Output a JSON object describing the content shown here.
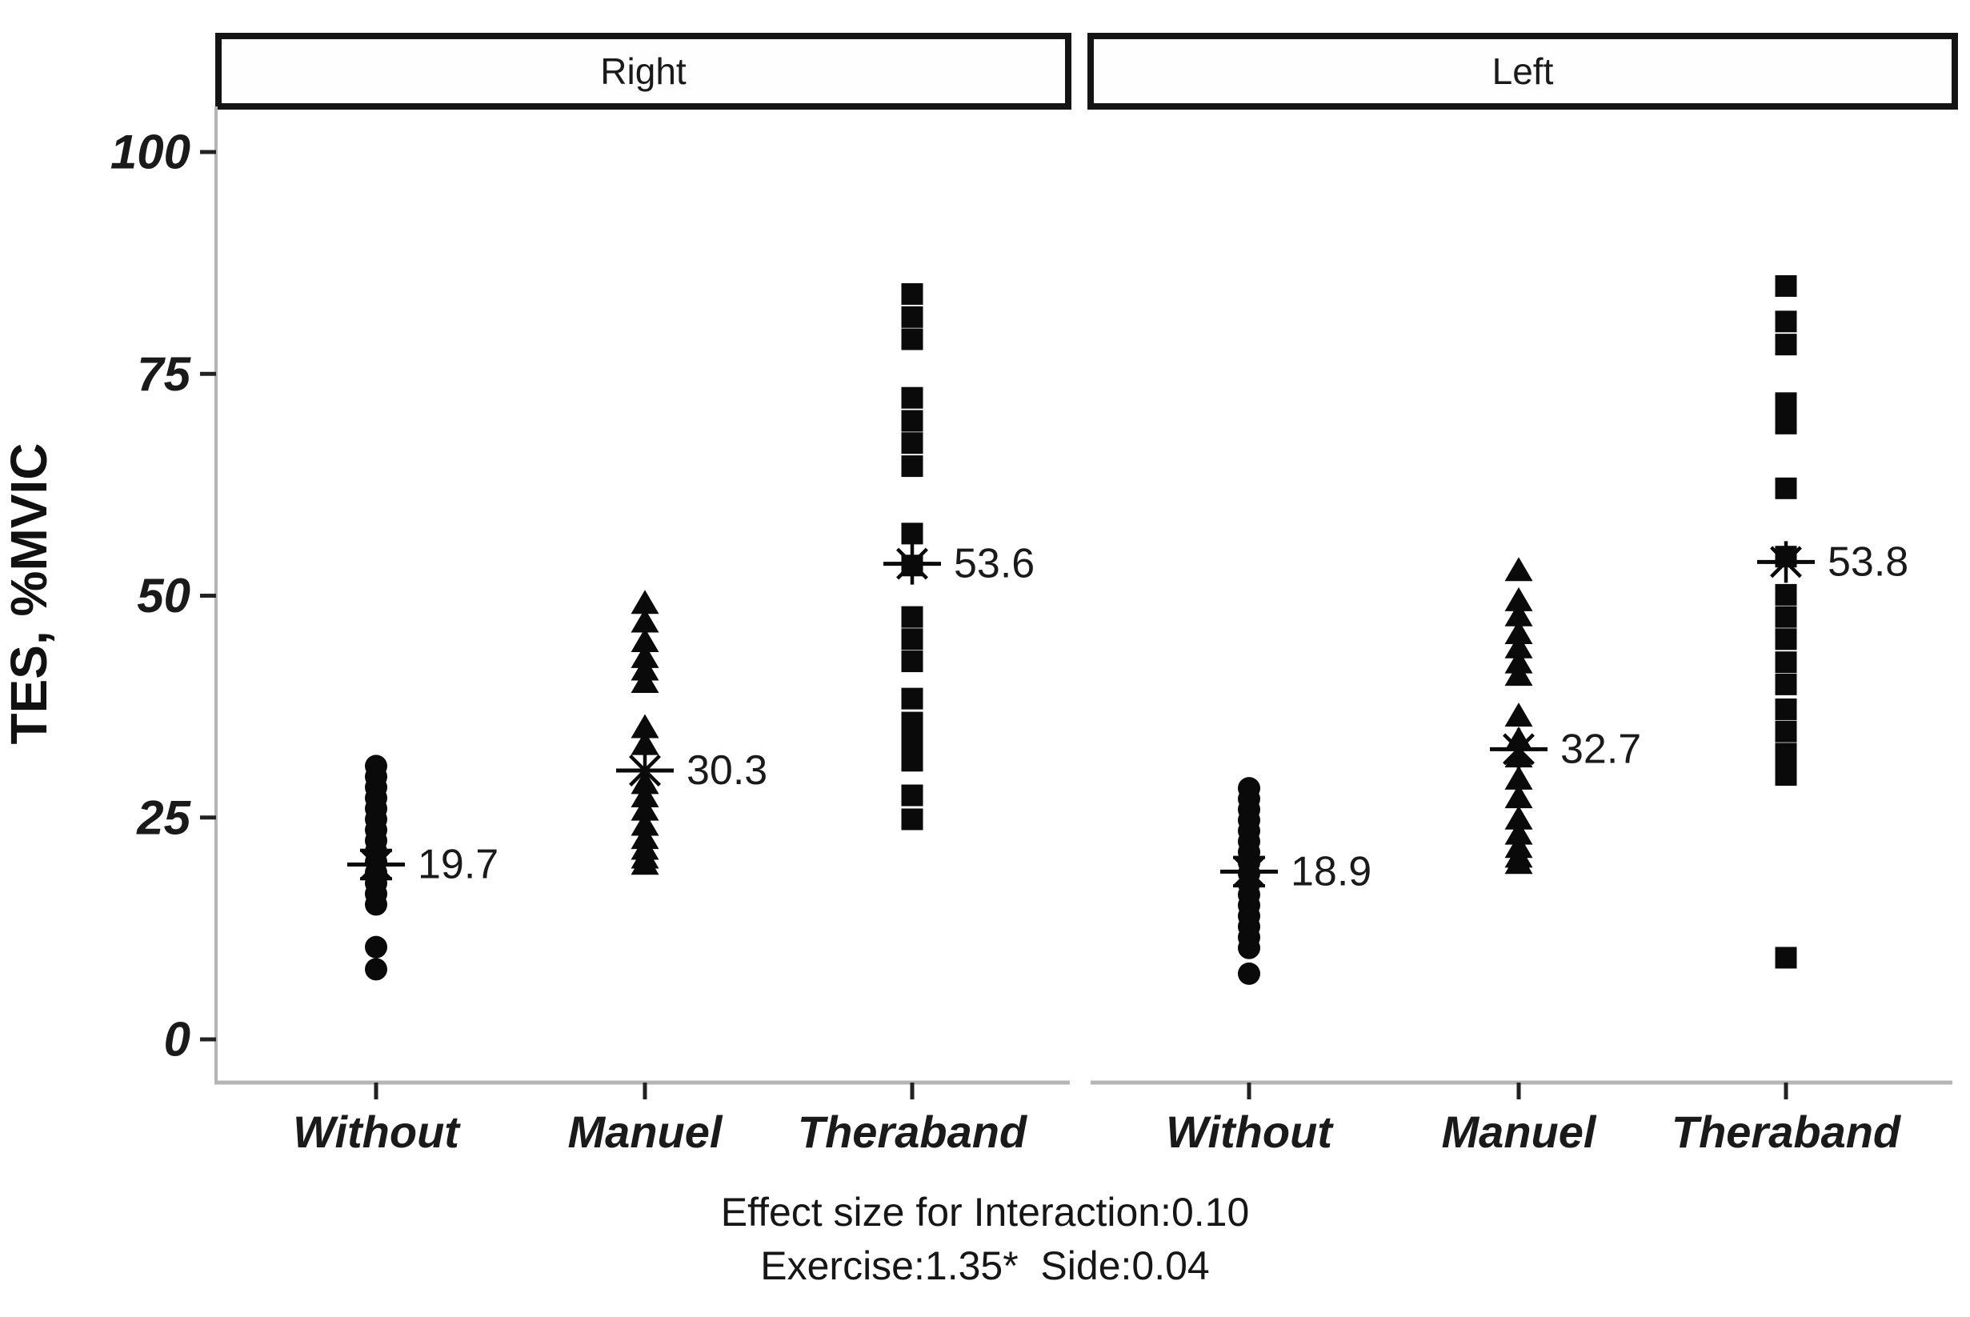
{
  "figure_title": "",
  "chart_data": {
    "type": "scatter",
    "subtype": "faceted-strip-plot",
    "title": "",
    "xlabel": "",
    "ylabel": "TES, %MVIC",
    "ylim": [
      0,
      100
    ],
    "yticks": [
      100,
      75,
      50,
      25,
      0
    ],
    "grid": false,
    "legend": "none",
    "facets": [
      {
        "label": "Right",
        "categories": [
          "Without",
          "Manuel",
          "Theraband"
        ],
        "series": [
          {
            "category": "Without",
            "marker": "circle",
            "mean": 19.7,
            "mean_label": "19.7",
            "mean_marker": "asterisk",
            "se": 1.6,
            "values": [
              30.8,
              29.6,
              28.4,
              27.2,
              26.0,
              24.8,
              23.6,
              22.4,
              21.2,
              20.0,
              18.8,
              17.6,
              16.4,
              15.2,
              10.4,
              7.9
            ]
          },
          {
            "category": "Manuel",
            "marker": "triangle",
            "mean": 30.3,
            "mean_label": "30.3",
            "mean_marker": "asterisk",
            "se": null,
            "values": [
              49.3,
              47.2,
              45.0,
              43.2,
              41.8,
              40.4,
              35.3,
              33.4,
              29.0,
              27.5,
              26.0,
              24.3,
              22.8,
              21.6,
              20.6,
              19.9
            ]
          },
          {
            "category": "Theraband",
            "marker": "square",
            "mean": 53.6,
            "mean_label": "53.6",
            "mean_marker": "asterisk",
            "se": null,
            "values": [
              84.0,
              81.4,
              78.9,
              72.3,
              69.7,
              67.2,
              64.6,
              57.0,
              53.4,
              47.6,
              45.1,
              42.6,
              38.4,
              35.7,
              33.4,
              31.4,
              27.5,
              24.8
            ]
          }
        ]
      },
      {
        "label": "Left",
        "categories": [
          "Without",
          "Manuel",
          "Theraband"
        ],
        "series": [
          {
            "category": "Without",
            "marker": "circle",
            "mean": 18.9,
            "mean_label": "18.9",
            "mean_marker": "asterisk",
            "se": 1.6,
            "values": [
              28.3,
              27.1,
              25.9,
              24.7,
              23.5,
              22.3,
              21.1,
              19.9,
              18.7,
              17.5,
              16.3,
              15.1,
              13.9,
              12.7,
              11.5,
              10.3,
              7.4
            ]
          },
          {
            "category": "Manuel",
            "marker": "triangle",
            "mean": 32.7,
            "mean_label": "32.7",
            "mean_marker": "asterisk",
            "se": null,
            "values": [
              53.0,
              49.6,
              47.9,
              45.9,
              44.3,
              42.6,
              41.2,
              36.6,
              33.9,
              32.0,
              29.5,
              27.4,
              25.0,
              23.3,
              21.8,
              20.7,
              20.0
            ]
          },
          {
            "category": "Theraband",
            "marker": "square",
            "mean": 53.8,
            "mean_label": "53.8",
            "mean_marker": "asterisk",
            "se": null,
            "values": [
              84.9,
              80.9,
              78.3,
              71.7,
              69.4,
              62.1,
              54.4,
              50.1,
              47.6,
              45.1,
              42.5,
              40.0,
              37.2,
              34.7,
              32.2,
              29.8,
              9.2
            ]
          }
        ]
      }
    ],
    "caption_lines": [
      "Effect size for Interaction:0.10",
      "Exercise:1.35*  Side:0.04"
    ],
    "colors": {
      "marker": "#0a0a0a",
      "text": "#1a1a1a",
      "axis_line": "#b5b5b5",
      "tick_mark": "#222222",
      "facet_border": "#141414",
      "facet_fill": "#fefefe",
      "background": "#ffffff"
    }
  }
}
